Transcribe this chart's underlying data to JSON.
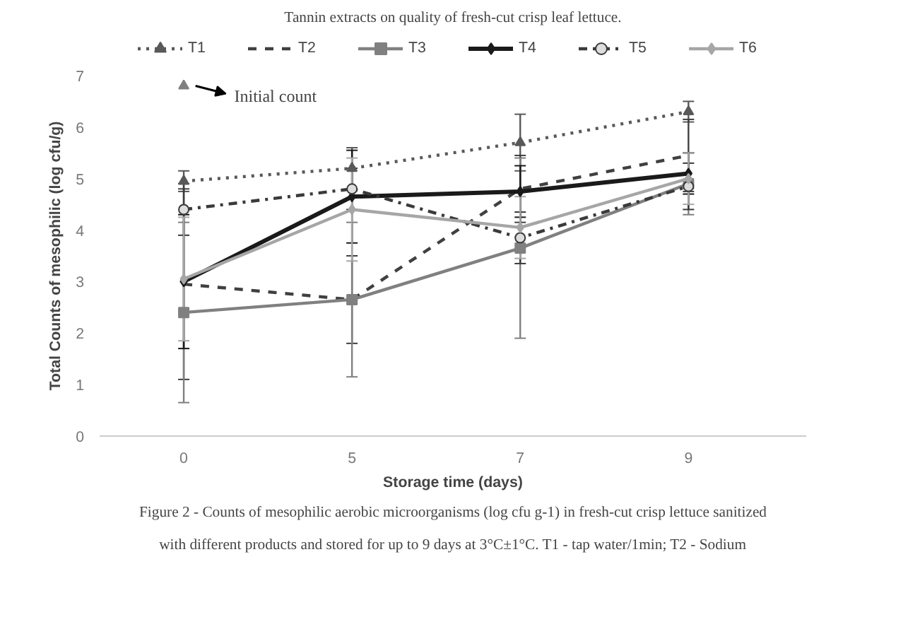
{
  "chart_data": {
    "type": "line",
    "xlabel": "Storage time (days)",
    "ylabel": "Total Counts of mesophilic (log cfu/g)",
    "categories": [
      "0",
      "5",
      "7",
      "9"
    ],
    "ylim": [
      0,
      7
    ],
    "yticks": [
      0,
      1,
      2,
      3,
      4,
      5,
      6,
      7
    ],
    "grid": false,
    "legend": "top",
    "annotations": [
      "Tannin extracts on quality of fresh-cut crisp leaf lettuce.",
      {
        "text": "Initial count",
        "x": "0",
        "y": 6.8
      },
      "Figure 2 - Counts of mesophilic aerobic microorganisms (log cfu g-1) in fresh-cut crisp lettuce sanitized",
      "with different products and stored for up to 9 days at 3°C±1°C. T1 - tap water/1min; T2 - Sodium"
    ],
    "series": [
      {
        "name": "T1",
        "color": "#595959",
        "values": [
          4.95,
          5.2,
          5.7,
          6.3
        ],
        "errors": [
          0.2,
          0.4,
          0.55,
          0.2
        ],
        "marker": "triangle",
        "line_style": "dotted"
      },
      {
        "name": "T2",
        "color": "#404040",
        "values": [
          2.95,
          2.65,
          4.8,
          5.45
        ],
        "errors": [
          1.85,
          0.85,
          0.65,
          0.7
        ],
        "marker": "none",
        "line_style": "dashed"
      },
      {
        "name": "T3",
        "color": "#808080",
        "values": [
          2.4,
          2.65,
          3.65,
          4.9
        ],
        "errors": [
          1.75,
          1.5,
          1.75,
          0.6
        ],
        "marker": "square",
        "line_style": "solid"
      },
      {
        "name": "T4",
        "color": "#1a1a1a",
        "values": [
          3.0,
          4.65,
          4.75,
          5.1
        ],
        "errors": [
          1.3,
          0.9,
          0.5,
          0.4
        ],
        "marker": "diamond",
        "line_style": "solid"
      },
      {
        "name": "T5",
        "color": "#3a3a3a",
        "values": [
          4.4,
          4.8,
          3.85,
          4.85
        ],
        "errors": [
          0.5,
          0.4,
          0.5,
          0.45
        ],
        "marker": "circle",
        "line_style": "dashdot"
      },
      {
        "name": "T6",
        "color": "#a6a6a6",
        "values": [
          3.05,
          4.4,
          4.05,
          5.0
        ],
        "errors": [
          1.2,
          1.0,
          0.6,
          0.5
        ],
        "marker": "diamond",
        "line_style": "solid"
      },
      {
        "type": "scatter",
        "color": "#808080",
        "x": [
          "0"
        ],
        "values": [
          6.8
        ],
        "marker": "triangle"
      }
    ]
  }
}
